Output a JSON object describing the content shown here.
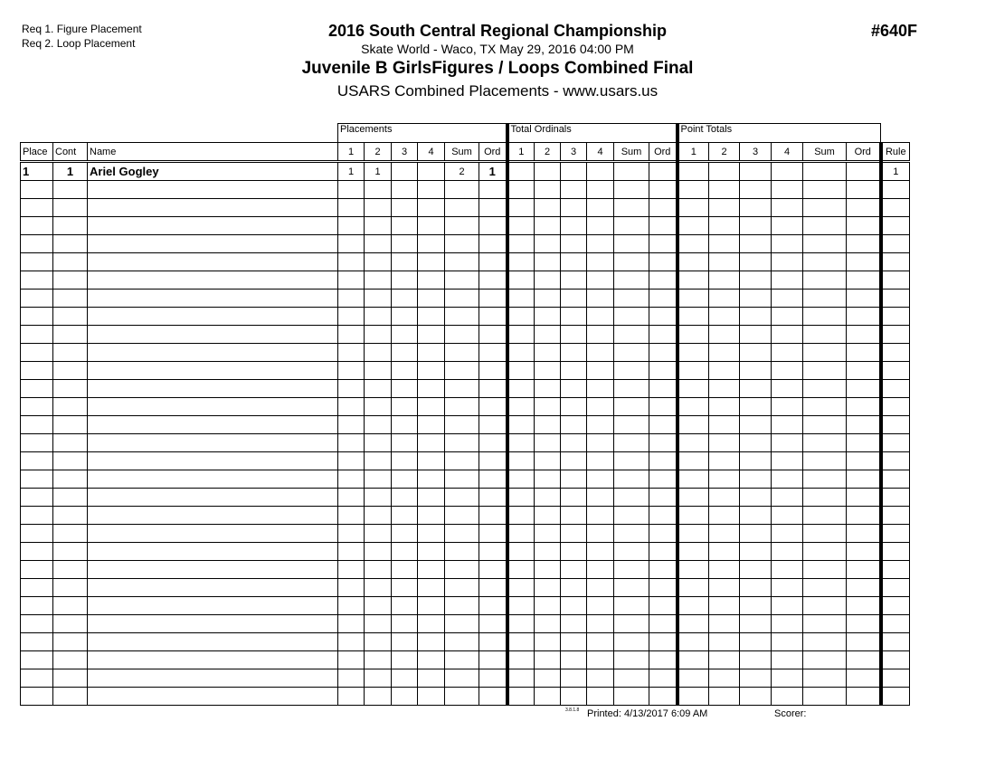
{
  "requirements": [
    "Req 1.  Figure Placement",
    "Req 2.  Loop Placement"
  ],
  "header": {
    "title": "2016 South Central Regional Championship",
    "venue": "Skate World - Waco, TX  May 29, 2016  04:00 PM",
    "event": "Juvenile B GirlsFigures / Loops Combined Final",
    "subtitle": "USARS Combined Placements - www.usars.us",
    "event_number": "#640F"
  },
  "table": {
    "groups": [
      "Placements",
      "Total Ordinals",
      "Point Totals"
    ],
    "columns": [
      "Place",
      "Cont",
      "Name",
      "1",
      "2",
      "3",
      "4",
      "Sum",
      "Ord",
      "1",
      "2",
      "3",
      "4",
      "Sum",
      "Ord",
      "1",
      "2",
      "3",
      "4",
      "Sum",
      "Ord",
      "Rule"
    ],
    "rows": [
      [
        "1",
        "1",
        "Ariel Gogley",
        "1",
        "1",
        "",
        "",
        "2",
        "1",
        "",
        "",
        "",
        "",
        "",
        "",
        "",
        "",
        "",
        "",
        "",
        "",
        "1"
      ]
    ],
    "total_rows": 30
  },
  "footer": {
    "version": "3.8.1.8",
    "printed": "Printed:  4/13/2017  6:09 AM",
    "scorer": "Scorer:"
  }
}
